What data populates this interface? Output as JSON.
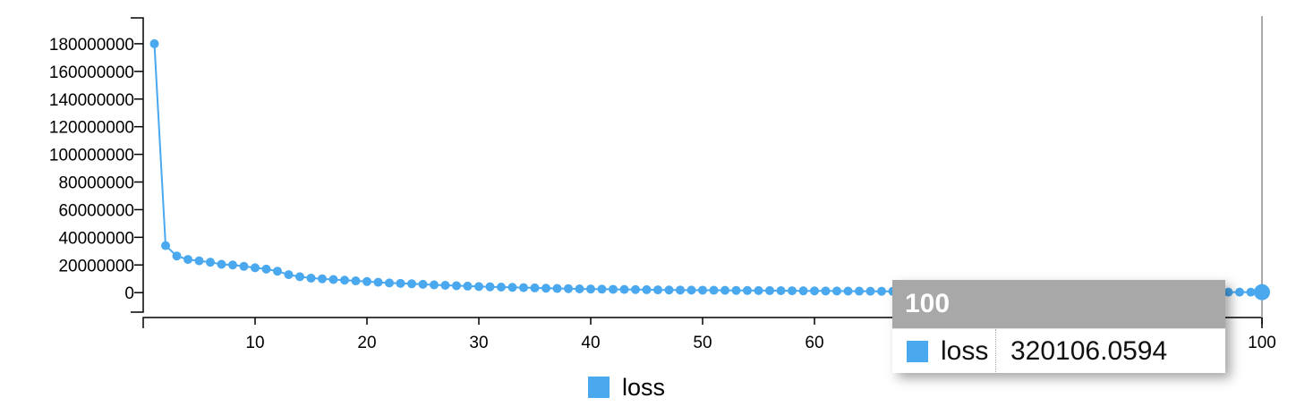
{
  "colors": {
    "series": "#4aa8ef",
    "axis": "#000000",
    "focus_line": "#aaaaaa"
  },
  "chart_data": {
    "type": "line",
    "title": "",
    "xlabel": "",
    "ylabel": "",
    "xlim": [
      0,
      100
    ],
    "ylim": [
      -18000000,
      200000000
    ],
    "x_ticks": [
      10,
      20,
      30,
      40,
      50,
      60,
      70,
      80,
      90,
      100
    ],
    "y_ticks": [
      0,
      20000000,
      40000000,
      60000000,
      80000000,
      100000000,
      120000000,
      140000000,
      160000000,
      180000000
    ],
    "legend_position": "bottom-center",
    "grid": false,
    "series": [
      {
        "name": "loss",
        "x": [
          1,
          2,
          3,
          4,
          5,
          6,
          7,
          8,
          9,
          10,
          11,
          12,
          13,
          14,
          15,
          16,
          17,
          18,
          19,
          20,
          21,
          22,
          23,
          24,
          25,
          26,
          27,
          28,
          29,
          30,
          31,
          32,
          33,
          34,
          35,
          36,
          37,
          38,
          39,
          40,
          41,
          42,
          43,
          44,
          45,
          46,
          47,
          48,
          49,
          50,
          51,
          52,
          53,
          54,
          55,
          56,
          57,
          58,
          59,
          60,
          61,
          62,
          63,
          64,
          65,
          66,
          67,
          68,
          69,
          70,
          71,
          72,
          73,
          74,
          75,
          76,
          77,
          78,
          79,
          80,
          81,
          82,
          83,
          84,
          85,
          86,
          87,
          88,
          89,
          90,
          91,
          92,
          93,
          94,
          95,
          96,
          97,
          98,
          99,
          100
        ],
        "values": [
          180000000,
          34000000,
          26500000,
          24000000,
          23000000,
          22000000,
          20500000,
          20000000,
          19000000,
          18000000,
          17000000,
          15500000,
          13000000,
          11500000,
          10500000,
          10000000,
          9500000,
          9000000,
          8500000,
          8000000,
          7500000,
          7000000,
          6700000,
          6400000,
          6000000,
          5600000,
          5300000,
          5000000,
          4700000,
          4400000,
          4200000,
          4000000,
          3800000,
          3600000,
          3400000,
          3200000,
          3000000,
          2900000,
          2700000,
          2600000,
          2500000,
          2400000,
          2300000,
          2200000,
          2100000,
          2000000,
          1900000,
          1850000,
          1800000,
          1750000,
          1700000,
          1650000,
          1600000,
          1550000,
          1500000,
          1450000,
          1400000,
          1350000,
          1300000,
          1250000,
          1200000,
          1150000,
          1100000,
          1050000,
          1000000,
          980000,
          950000,
          920000,
          900000,
          880000,
          850000,
          820000,
          800000,
          780000,
          760000,
          740000,
          720000,
          700000,
          680000,
          660000,
          640000,
          620000,
          600000,
          580000,
          560000,
          540000,
          520000,
          500000,
          480000,
          460000,
          440000,
          420000,
          410000,
          400000,
          390000,
          380000,
          360000,
          350000,
          340000,
          320106.0594
        ]
      }
    ]
  },
  "legend": {
    "label": "loss"
  },
  "tooltip": {
    "title": "100",
    "series_name": "loss",
    "value": "320106.0594",
    "x": 100
  }
}
